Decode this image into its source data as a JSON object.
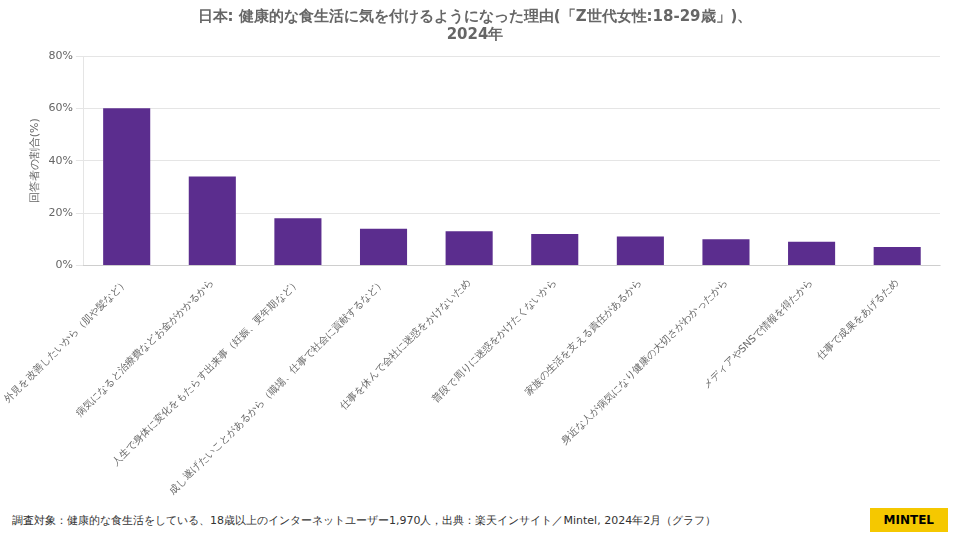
{
  "chart_data": {
    "type": "bar",
    "title": "日本: 健康的な食生活に気を付けるようになった理由(「Z世代女性:18-29歳」)、\n2024年",
    "y_label": "回答者の割合(%)",
    "categories": [
      "外見を改善したいから（肌や髪など）",
      "病気になると治療費などお金がかかるから",
      "人生で身体に変化をもたらす出来事（妊娠、更年期など）",
      "成し遂げたいことがあるから（職場、仕事で社会に貢献するなど）",
      "仕事を休んで会社に迷惑をかけないため",
      "普段で周りに迷惑をかけたくないから",
      "家族の生活を支える責任があるから",
      "身近な人が病気になり健康の大切さがわかったから",
      "メディアやSNSで情報を得たから",
      "仕事で成果をあげるため"
    ],
    "values": [
      60,
      34,
      18,
      14,
      13,
      12,
      11,
      10,
      9,
      7
    ],
    "color": "#5b2d8e",
    "ylim": [
      0,
      80
    ],
    "yticks": [
      {
        "value": 0,
        "label": "0%"
      },
      {
        "value": 20,
        "label": "20%"
      },
      {
        "value": 40,
        "label": "40%"
      },
      {
        "value": 60,
        "label": "60%"
      },
      {
        "value": 80,
        "label": "80%"
      }
    ],
    "grid": true,
    "annotations": [
      {
        "text": "調査対象：健康的な食生活をしている、18歳以上のインターネットユーザー1,970人，出典：楽天インサイト／Mintel, 2024年2月（グラフ）"
      },
      {
        "text": "MINTEL",
        "color": "#f5c800"
      }
    ]
  }
}
